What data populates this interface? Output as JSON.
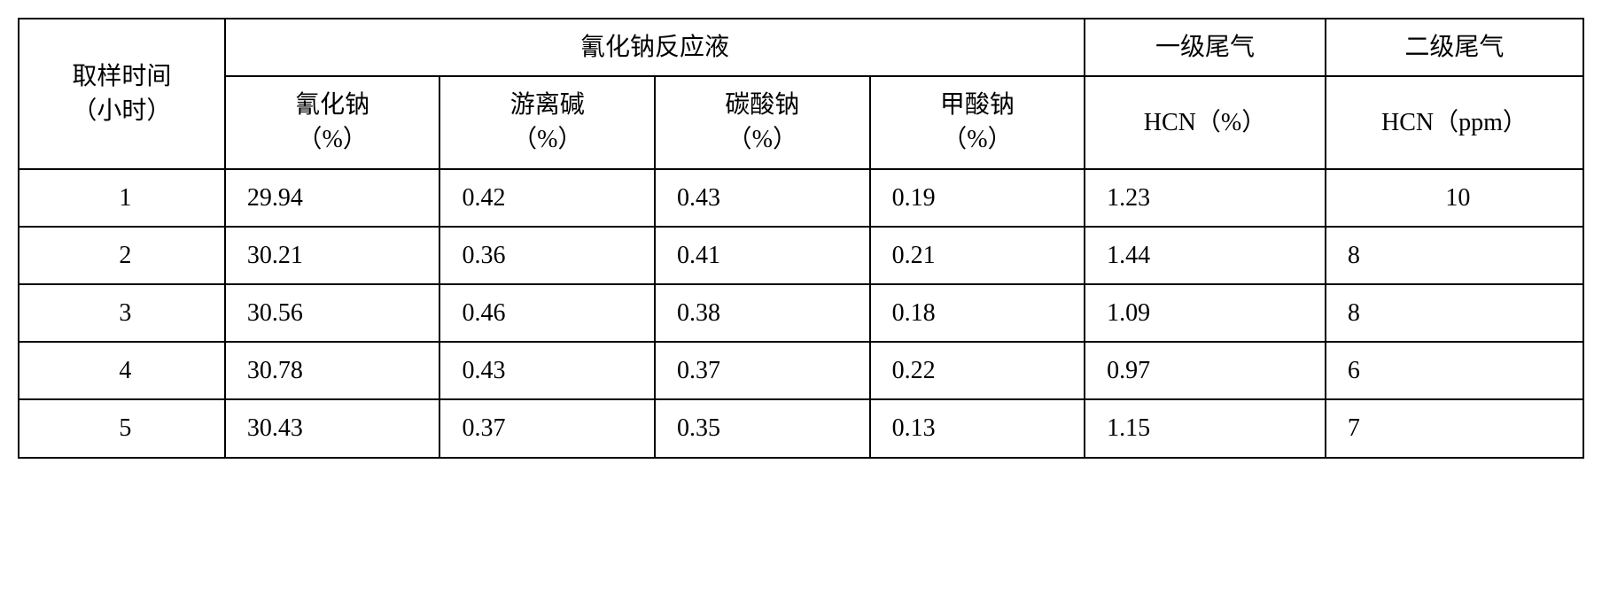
{
  "table": {
    "headers": {
      "sampling_time": "取样时间\n（小时）",
      "reaction_liquid": "氰化钠反应液",
      "tail_gas_1": "一级尾气",
      "tail_gas_2": "二级尾气"
    },
    "sub_headers": {
      "sodium_cyanide": "氰化钠\n（%）",
      "free_alkali": "游离碱\n（%）",
      "sodium_carbonate": "碳酸钠\n（%）",
      "sodium_formate": "甲酸钠\n（%）",
      "hcn_percent": "HCN（%）",
      "hcn_ppm": "HCN（ppm）"
    },
    "rows": [
      {
        "time": "1",
        "sodium_cyanide": "29.94",
        "free_alkali": "0.42",
        "sodium_carbonate": "0.43",
        "sodium_formate": "0.19",
        "hcn_percent": "1.23",
        "hcn_ppm": "10"
      },
      {
        "time": "2",
        "sodium_cyanide": "30.21",
        "free_alkali": "0.36",
        "sodium_carbonate": "0.41",
        "sodium_formate": "0.21",
        "hcn_percent": "1.44",
        "hcn_ppm": "8"
      },
      {
        "time": "3",
        "sodium_cyanide": "30.56",
        "free_alkali": "0.46",
        "sodium_carbonate": "0.38",
        "sodium_formate": "0.18",
        "hcn_percent": "1.09",
        "hcn_ppm": "8"
      },
      {
        "time": "4",
        "sodium_cyanide": "30.78",
        "free_alkali": "0.43",
        "sodium_carbonate": "0.37",
        "sodium_formate": "0.22",
        "hcn_percent": "0.97",
        "hcn_ppm": "6"
      },
      {
        "time": "5",
        "sodium_cyanide": "30.43",
        "free_alkali": "0.37",
        "sodium_carbonate": "0.35",
        "sodium_formate": "0.13",
        "hcn_percent": "1.15",
        "hcn_ppm": "7"
      }
    ],
    "styling": {
      "border_color": "#000000",
      "border_width": 2,
      "background_color": "#ffffff",
      "font_size": 28,
      "font_family": "SimSun",
      "cell_padding": 12
    }
  }
}
